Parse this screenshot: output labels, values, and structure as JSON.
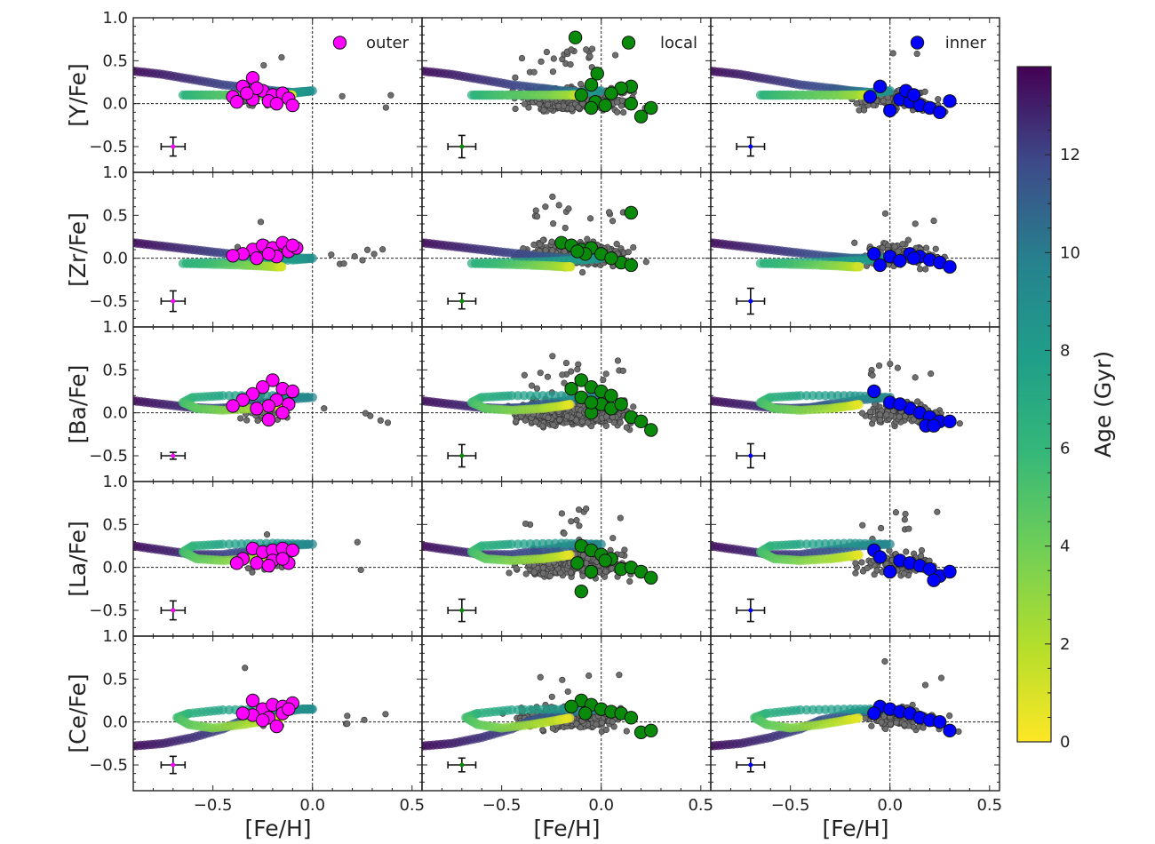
{
  "figure": {
    "x_axis_label": "[Fe/H]",
    "colorbar_label": "Age (Gyr)",
    "colorbar_ticks": [
      "0",
      "2",
      "4",
      "6",
      "8",
      "10",
      "12"
    ]
  },
  "chart_data": {
    "type": "scatter",
    "layout": "5 rows x 3 columns, shared axes",
    "xlim": [
      -0.9,
      0.55
    ],
    "ylim": [
      -0.8,
      1.0
    ],
    "x_ticks": [
      -0.5,
      0.0,
      0.5
    ],
    "x_tick_labels": [
      "−0.5",
      "0.0",
      "0.5"
    ],
    "y_ticks": [
      -0.5,
      0.0,
      0.5,
      1.0
    ],
    "y_tick_labels": [
      "−0.5",
      "0.0",
      "0.5",
      "1.0"
    ],
    "reference_lines": {
      "x": 0.0,
      "y": 0.0
    },
    "colorbar": {
      "label": "Age (Gyr)",
      "range": [
        0,
        13.8
      ],
      "ticks": [
        0,
        2,
        4,
        6,
        8,
        10,
        12
      ],
      "colormap": "viridis (reversed)"
    },
    "rows": [
      {
        "element": "Y",
        "ylabel": "[Y/Fe]"
      },
      {
        "element": "Zr",
        "ylabel": "[Zr/Fe]"
      },
      {
        "element": "Ba",
        "ylabel": "[Ba/Fe]"
      },
      {
        "element": "La",
        "ylabel": "[La/Fe]"
      },
      {
        "element": "Ce",
        "ylabel": "[Ce/Fe]"
      }
    ],
    "columns": [
      {
        "region": "outer",
        "legend": "outer",
        "color": "#ff00ff",
        "field_spread": 0.45,
        "error_x": -0.7
      },
      {
        "region": "local",
        "legend": "local",
        "color": "#0a8a0a",
        "field_spread": 1.0,
        "error_x": -0.7
      },
      {
        "region": "inner",
        "legend": "inner",
        "color": "#0000ff",
        "field_spread": 0.6,
        "error_x": -0.7
      }
    ],
    "error_bars": [
      [
        {
          "y": -0.5,
          "xerr": 0.06,
          "yerr": 0.11
        },
        {
          "y": -0.5,
          "xerr": 0.07,
          "yerr": 0.13
        },
        {
          "y": -0.5,
          "xerr": 0.07,
          "yerr": 0.11
        }
      ],
      [
        {
          "y": -0.5,
          "xerr": 0.06,
          "yerr": 0.12
        },
        {
          "y": -0.5,
          "xerr": 0.07,
          "yerr": 0.09
        },
        {
          "y": -0.5,
          "xerr": 0.07,
          "yerr": 0.15
        }
      ],
      [
        {
          "y": -0.5,
          "xerr": 0.06,
          "yerr": 0.04
        },
        {
          "y": -0.5,
          "xerr": 0.07,
          "yerr": 0.13
        },
        {
          "y": -0.5,
          "xerr": 0.07,
          "yerr": 0.14
        }
      ],
      [
        {
          "y": -0.5,
          "xerr": 0.06,
          "yerr": 0.11
        },
        {
          "y": -0.5,
          "xerr": 0.07,
          "yerr": 0.13
        },
        {
          "y": -0.5,
          "xerr": 0.07,
          "yerr": 0.13
        }
      ],
      [
        {
          "y": -0.5,
          "xerr": 0.06,
          "yerr": 0.1
        },
        {
          "y": -0.5,
          "xerr": 0.07,
          "yerr": 0.08
        },
        {
          "y": -0.5,
          "xerr": 0.07,
          "yerr": 0.08
        }
      ]
    ],
    "cluster_points": [
      [
        [
          [
            -0.3,
            0.3
          ],
          [
            -0.35,
            0.2
          ],
          [
            -0.25,
            0.15
          ],
          [
            -0.2,
            0.1
          ],
          [
            -0.4,
            0.08
          ],
          [
            -0.15,
            0.12
          ],
          [
            -0.3,
            0.05
          ],
          [
            -0.22,
            0.03
          ],
          [
            -0.12,
            0.06
          ],
          [
            -0.38,
            0.02
          ],
          [
            -0.28,
            0.18
          ],
          [
            -0.18,
            0.0
          ],
          [
            -0.1,
            -0.02
          ],
          [
            -0.33,
            0.12
          ]
        ],
        [
          [
            -0.13,
            0.77
          ],
          [
            -0.02,
            0.35
          ],
          [
            0.15,
            0.2
          ],
          [
            0.1,
            0.18
          ],
          [
            0.05,
            0.12
          ],
          [
            -0.05,
            0.22
          ],
          [
            -0.1,
            0.1
          ],
          [
            -0.03,
            0.02
          ],
          [
            0.02,
            -0.02
          ],
          [
            0.15,
            0.0
          ],
          [
            0.2,
            -0.15
          ],
          [
            0.25,
            -0.05
          ],
          [
            -0.05,
            -0.05
          ]
        ],
        [
          [
            -0.05,
            0.2
          ],
          [
            -0.1,
            0.08
          ],
          [
            0.05,
            0.05
          ],
          [
            0.1,
            0.02
          ],
          [
            0.15,
            -0.02
          ],
          [
            0.2,
            -0.05
          ],
          [
            0.25,
            -0.1
          ],
          [
            0.3,
            0.03
          ],
          [
            0.0,
            -0.08
          ],
          [
            0.08,
            0.15
          ],
          [
            0.12,
            0.1
          ]
        ]
      ],
      [
        [
          [
            -0.3,
            0.1
          ],
          [
            -0.25,
            0.15
          ],
          [
            -0.2,
            0.12
          ],
          [
            -0.15,
            0.18
          ],
          [
            -0.12,
            0.08
          ],
          [
            -0.35,
            0.05
          ],
          [
            -0.18,
            0.02
          ],
          [
            -0.08,
            0.12
          ],
          [
            -0.28,
            0.0
          ],
          [
            -0.22,
            0.05
          ],
          [
            -0.1,
            0.15
          ],
          [
            -0.4,
            0.03
          ]
        ],
        [
          [
            0.15,
            0.53
          ],
          [
            -0.2,
            0.18
          ],
          [
            -0.15,
            0.15
          ],
          [
            -0.1,
            0.1
          ],
          [
            -0.05,
            0.12
          ],
          [
            0.0,
            0.05
          ],
          [
            0.1,
            -0.05
          ],
          [
            0.15,
            -0.08
          ],
          [
            -0.08,
            0.05
          ],
          [
            0.05,
            0.0
          ],
          [
            -0.12,
            0.08
          ]
        ],
        [
          [
            -0.08,
            0.05
          ],
          [
            0.0,
            0.02
          ],
          [
            0.1,
            0.05
          ],
          [
            0.15,
            0.02
          ],
          [
            0.2,
            -0.02
          ],
          [
            0.25,
            -0.05
          ],
          [
            0.3,
            -0.1
          ],
          [
            -0.05,
            -0.08
          ],
          [
            0.05,
            -0.03
          ],
          [
            0.12,
            0.0
          ]
        ]
      ],
      [
        [
          [
            -0.2,
            0.38
          ],
          [
            -0.25,
            0.3
          ],
          [
            -0.15,
            0.28
          ],
          [
            -0.3,
            0.22
          ],
          [
            -0.1,
            0.25
          ],
          [
            -0.18,
            0.15
          ],
          [
            -0.35,
            0.15
          ],
          [
            -0.22,
            0.08
          ],
          [
            -0.12,
            0.1
          ],
          [
            -0.28,
            0.05
          ],
          [
            -0.15,
            0.0
          ],
          [
            -0.22,
            -0.08
          ],
          [
            -0.4,
            0.08
          ]
        ],
        [
          [
            -0.1,
            0.38
          ],
          [
            -0.05,
            0.3
          ],
          [
            0.0,
            0.25
          ],
          [
            0.05,
            0.2
          ],
          [
            -0.15,
            0.28
          ],
          [
            -0.1,
            0.18
          ],
          [
            0.0,
            0.1
          ],
          [
            0.05,
            0.05
          ],
          [
            -0.05,
            0.0
          ],
          [
            0.1,
            0.1
          ],
          [
            0.15,
            -0.05
          ],
          [
            0.2,
            -0.1
          ],
          [
            0.25,
            -0.2
          ],
          [
            -0.05,
            0.12
          ]
        ],
        [
          [
            -0.08,
            0.25
          ],
          [
            0.0,
            0.12
          ],
          [
            0.1,
            0.05
          ],
          [
            0.15,
            0.0
          ],
          [
            0.2,
            -0.05
          ],
          [
            0.25,
            -0.1
          ],
          [
            0.3,
            -0.1
          ],
          [
            0.18,
            -0.15
          ],
          [
            0.22,
            -0.15
          ],
          [
            0.05,
            0.1
          ]
        ]
      ],
      [
        [
          [
            -0.3,
            0.22
          ],
          [
            -0.25,
            0.18
          ],
          [
            -0.2,
            0.2
          ],
          [
            -0.15,
            0.22
          ],
          [
            -0.1,
            0.2
          ],
          [
            -0.35,
            0.1
          ],
          [
            -0.28,
            0.05
          ],
          [
            -0.2,
            0.08
          ],
          [
            -0.12,
            0.05
          ],
          [
            -0.22,
            0.02
          ],
          [
            -0.38,
            0.05
          ],
          [
            -0.15,
            0.1
          ]
        ],
        [
          [
            -0.1,
            0.25
          ],
          [
            -0.05,
            0.2
          ],
          [
            0.0,
            0.15
          ],
          [
            0.05,
            0.1
          ],
          [
            -0.12,
            0.05
          ],
          [
            0.1,
            -0.02
          ],
          [
            0.15,
            0.0
          ],
          [
            0.2,
            -0.05
          ],
          [
            0.25,
            -0.12
          ],
          [
            -0.05,
            -0.05
          ],
          [
            -0.1,
            -0.28
          ],
          [
            0.02,
            0.08
          ]
        ],
        [
          [
            -0.08,
            0.2
          ],
          [
            -0.05,
            0.12
          ],
          [
            0.05,
            0.08
          ],
          [
            0.1,
            0.05
          ],
          [
            0.15,
            0.02
          ],
          [
            0.2,
            -0.02
          ],
          [
            0.25,
            -0.1
          ],
          [
            0.3,
            -0.05
          ],
          [
            0.0,
            -0.05
          ],
          [
            0.22,
            -0.15
          ]
        ]
      ],
      [
        [
          [
            -0.3,
            0.25
          ],
          [
            -0.25,
            0.15
          ],
          [
            -0.2,
            0.2
          ],
          [
            -0.15,
            0.18
          ],
          [
            -0.1,
            0.22
          ],
          [
            -0.3,
            0.08
          ],
          [
            -0.22,
            0.05
          ],
          [
            -0.15,
            0.1
          ],
          [
            -0.25,
            0.02
          ],
          [
            -0.18,
            -0.05
          ],
          [
            -0.35,
            0.1
          ],
          [
            -0.12,
            0.15
          ]
        ],
        [
          [
            -0.1,
            0.25
          ],
          [
            -0.05,
            0.2
          ],
          [
            0.0,
            0.15
          ],
          [
            -0.15,
            0.18
          ],
          [
            0.05,
            0.12
          ],
          [
            0.1,
            0.1
          ],
          [
            -0.08,
            0.1
          ],
          [
            0.15,
            0.05
          ],
          [
            0.2,
            -0.12
          ],
          [
            0.25,
            -0.1
          ]
        ],
        [
          [
            -0.05,
            0.18
          ],
          [
            0.0,
            0.15
          ],
          [
            0.05,
            0.12
          ],
          [
            0.1,
            0.1
          ],
          [
            0.15,
            0.05
          ],
          [
            0.2,
            0.02
          ],
          [
            0.25,
            0.0
          ],
          [
            0.3,
            -0.1
          ],
          [
            -0.08,
            0.1
          ]
        ]
      ]
    ],
    "model_tracks": [
      [
        [
          -0.9,
          0.38,
          13.5
        ],
        [
          -0.75,
          0.34,
          13.0
        ],
        [
          -0.6,
          0.28,
          12.5
        ],
        [
          -0.45,
          0.22,
          12.0
        ],
        [
          -0.3,
          0.18,
          11.5
        ],
        [
          -0.2,
          0.15,
          10.8
        ],
        [
          -0.1,
          0.13,
          10.0
        ],
        [
          0.0,
          0.15,
          9.0
        ],
        [
          -0.1,
          0.12,
          8.0
        ],
        [
          -0.25,
          0.1,
          7.5
        ],
        [
          -0.5,
          0.1,
          7.0
        ],
        [
          -0.65,
          0.1,
          6.5
        ],
        [
          -0.55,
          0.1,
          5.5
        ],
        [
          -0.4,
          0.1,
          4.5
        ],
        [
          -0.25,
          0.1,
          3.5
        ],
        [
          -0.15,
          0.1,
          2.5
        ],
        [
          -0.12,
          0.1,
          1.5
        ],
        [
          -0.1,
          0.1,
          0.5
        ]
      ],
      [
        [
          -0.9,
          0.18,
          13.5
        ],
        [
          -0.75,
          0.14,
          13.0
        ],
        [
          -0.6,
          0.1,
          12.5
        ],
        [
          -0.45,
          0.06,
          12.0
        ],
        [
          -0.3,
          0.02,
          11.5
        ],
        [
          -0.2,
          0.0,
          10.8
        ],
        [
          -0.1,
          0.0,
          10.0
        ],
        [
          0.0,
          0.0,
          9.0
        ],
        [
          -0.1,
          -0.02,
          8.0
        ],
        [
          -0.3,
          -0.04,
          7.5
        ],
        [
          -0.5,
          -0.05,
          7.0
        ],
        [
          -0.65,
          -0.06,
          6.5
        ],
        [
          -0.5,
          -0.07,
          5.5
        ],
        [
          -0.35,
          -0.08,
          4.0
        ],
        [
          -0.25,
          -0.09,
          3.0
        ],
        [
          -0.18,
          -0.1,
          2.0
        ],
        [
          -0.15,
          -0.1,
          1.0
        ]
      ],
      [
        [
          -0.9,
          0.14,
          13.5
        ],
        [
          -0.75,
          0.1,
          13.0
        ],
        [
          -0.6,
          0.06,
          12.5
        ],
        [
          -0.5,
          0.05,
          12.0
        ],
        [
          -0.4,
          0.06,
          11.5
        ],
        [
          -0.3,
          0.1,
          11.0
        ],
        [
          -0.15,
          0.15,
          10.5
        ],
        [
          0.0,
          0.18,
          9.5
        ],
        [
          -0.2,
          0.2,
          8.5
        ],
        [
          -0.45,
          0.2,
          7.5
        ],
        [
          -0.6,
          0.18,
          6.5
        ],
        [
          -0.65,
          0.12,
          5.5
        ],
        [
          -0.58,
          0.05,
          4.5
        ],
        [
          -0.45,
          0.03,
          3.5
        ],
        [
          -0.3,
          0.05,
          2.5
        ],
        [
          -0.2,
          0.08,
          1.5
        ],
        [
          -0.15,
          0.1,
          0.5
        ]
      ],
      [
        [
          -0.9,
          0.25,
          13.5
        ],
        [
          -0.75,
          0.2,
          13.0
        ],
        [
          -0.6,
          0.15,
          12.5
        ],
        [
          -0.45,
          0.15,
          12.0
        ],
        [
          -0.3,
          0.2,
          11.5
        ],
        [
          -0.15,
          0.25,
          10.5
        ],
        [
          0.0,
          0.27,
          9.5
        ],
        [
          -0.2,
          0.28,
          8.5
        ],
        [
          -0.45,
          0.27,
          7.5
        ],
        [
          -0.6,
          0.25,
          6.5
        ],
        [
          -0.65,
          0.18,
          5.5
        ],
        [
          -0.58,
          0.1,
          4.5
        ],
        [
          -0.45,
          0.08,
          3.5
        ],
        [
          -0.3,
          0.1,
          2.5
        ],
        [
          -0.2,
          0.13,
          1.5
        ],
        [
          -0.15,
          0.15,
          0.5
        ]
      ],
      [
        [
          -0.9,
          -0.28,
          13.5
        ],
        [
          -0.75,
          -0.25,
          13.0
        ],
        [
          -0.6,
          -0.18,
          12.5
        ],
        [
          -0.45,
          -0.08,
          12.0
        ],
        [
          -0.35,
          0.02,
          11.5
        ],
        [
          -0.2,
          0.1,
          11.0
        ],
        [
          -0.05,
          0.15,
          10.0
        ],
        [
          0.0,
          0.15,
          9.0
        ],
        [
          -0.2,
          0.15,
          8.0
        ],
        [
          -0.45,
          0.14,
          7.5
        ],
        [
          -0.62,
          0.1,
          6.5
        ],
        [
          -0.68,
          0.05,
          5.5
        ],
        [
          -0.62,
          -0.03,
          4.5
        ],
        [
          -0.5,
          -0.07,
          3.5
        ],
        [
          -0.35,
          -0.03,
          2.5
        ],
        [
          -0.22,
          0.02,
          1.5
        ],
        [
          -0.15,
          0.05,
          0.5
        ]
      ]
    ]
  }
}
